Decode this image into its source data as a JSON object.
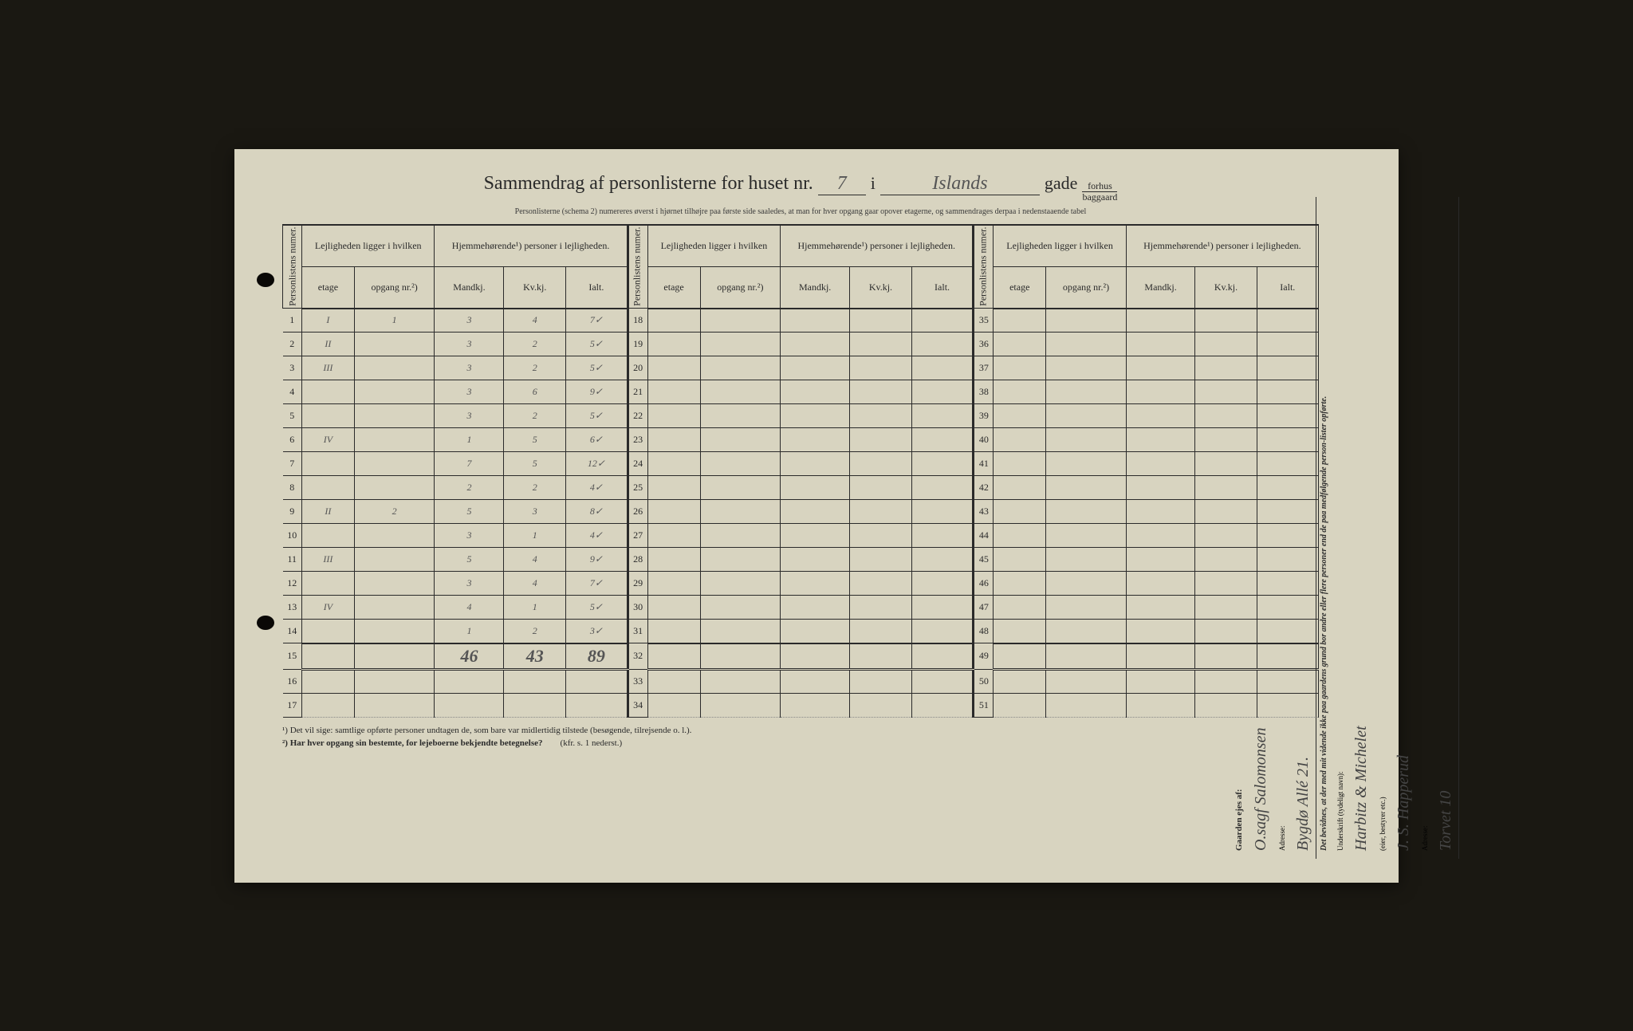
{
  "header": {
    "title_prefix": "Sammendrag af personlisterne for huset nr.",
    "house_nr": "7",
    "connector_i": "i",
    "street": "Islands",
    "gade": "gade",
    "forhus": "forhus",
    "baggaard": "baggaard"
  },
  "subheader": "Personlisterne (schema 2) numereres øverst i hjørnet tilhøjre paa første side saaledes, at man for hver opgang gaar opover etagerne, og sammendrages derpaa i nedenstaaende tabel",
  "column_headers": {
    "personlistens_numer": "Personlistens numer.",
    "lejligheden": "Lejligheden ligger i hvilken",
    "hjemmehorende": "Hjemmehørende¹) personer i lejligheden.",
    "etage": "etage",
    "opgang_nr": "opgang nr.²)",
    "mandkj": "Mandkj.",
    "kvkj": "Kv.kj.",
    "ialt": "Ialt."
  },
  "rows_block1": [
    {
      "n": "1",
      "etage": "I",
      "opgang": "1",
      "m": "3",
      "k": "4",
      "i": "7✓"
    },
    {
      "n": "2",
      "etage": "II",
      "opgang": "",
      "m": "3",
      "k": "2",
      "i": "5✓"
    },
    {
      "n": "3",
      "etage": "III",
      "opgang": "",
      "m": "3",
      "k": "2",
      "i": "5✓"
    },
    {
      "n": "4",
      "etage": "",
      "opgang": "",
      "m": "3",
      "k": "6",
      "i": "9✓"
    },
    {
      "n": "5",
      "etage": "",
      "opgang": "",
      "m": "3",
      "k": "2",
      "i": "5✓"
    },
    {
      "n": "6",
      "etage": "IV",
      "opgang": "",
      "m": "1",
      "k": "5",
      "i": "6✓"
    },
    {
      "n": "7",
      "etage": "",
      "opgang": "",
      "m": "7",
      "k": "5",
      "i": "12✓"
    },
    {
      "n": "8",
      "etage": "",
      "opgang": "",
      "m": "2",
      "k": "2",
      "i": "4✓"
    },
    {
      "n": "9",
      "etage": "II",
      "opgang": "2",
      "m": "5",
      "k": "3",
      "i": "8✓"
    },
    {
      "n": "10",
      "etage": "",
      "opgang": "",
      "m": "3",
      "k": "1",
      "i": "4✓"
    },
    {
      "n": "11",
      "etage": "III",
      "opgang": "",
      "m": "5",
      "k": "4",
      "i": "9✓"
    },
    {
      "n": "12",
      "etage": "",
      "opgang": "",
      "m": "3",
      "k": "4",
      "i": "7✓"
    },
    {
      "n": "13",
      "etage": "IV",
      "opgang": "",
      "m": "4",
      "k": "1",
      "i": "5✓"
    },
    {
      "n": "14",
      "etage": "",
      "opgang": "",
      "m": "1",
      "k": "2",
      "i": "3✓"
    },
    {
      "n": "15",
      "etage": "",
      "opgang": "",
      "m": "46",
      "k": "43",
      "i": "89",
      "sum": true
    },
    {
      "n": "16",
      "etage": "",
      "opgang": "",
      "m": "",
      "k": "",
      "i": ""
    },
    {
      "n": "17",
      "etage": "",
      "opgang": "",
      "m": "",
      "k": "",
      "i": ""
    }
  ],
  "rows_block2_start": 18,
  "rows_block3_start": 35,
  "footnotes": {
    "fn1": "¹)  Det vil sige: samtlige opførte personer undtagen de, som bare var midlertidig tilstede (besøgende, tilrejsende o. l.).",
    "fn2": "²)  Har hver opgang sin bestemte, for lejeboerne bekjendte betegnelse?",
    "fn2_ref": "(kfr. s. 1 nederst.)"
  },
  "right_panel": {
    "gaarden_ejes_af": "Gaarden ejes af:",
    "owner": "O.sagf Salomonsen",
    "adresse_label": "Adresse:",
    "owner_addr": "Bygdø Allé 21.",
    "bevidnes": "Det bevidnes, at der med mit vidende ikke paa gaardens grund bor andre eller flere personer end de paa medfølgende person-lister opførte.",
    "underskrift": "Underskrift (tydeligt navn):",
    "eier_bestyrer": "(eier, bestyrer etc.)",
    "sign1": "Harbitz & Michelet",
    "sign2": "J. S. Happerud",
    "addr2": "Torvet 10"
  },
  "colors": {
    "paper": "#d8d4c0",
    "ink": "#2a2a2a",
    "handwriting": "#555",
    "bg": "#1a1812"
  }
}
